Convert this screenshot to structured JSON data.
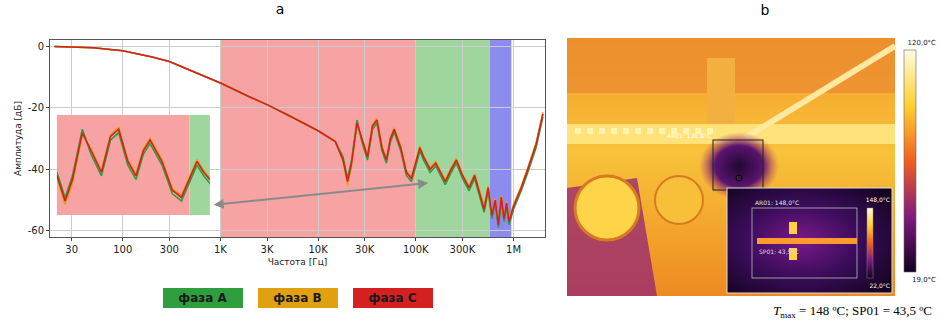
{
  "chart_data": {
    "type": "line",
    "panel_label": "a",
    "x_label": "Частота [Гц]",
    "y_label": "Амплитуда [дБ]",
    "log": "x",
    "grid": true,
    "legend": "bottom",
    "xlim": [
      18,
      2100000
    ],
    "ylim": [
      -62,
      2
    ],
    "xticks": [
      30,
      100,
      300,
      {
        "value": 1000,
        "label": "1K"
      },
      {
        "value": 3000,
        "label": "3K"
      },
      {
        "value": 10000,
        "label": "10K"
      },
      {
        "value": 30000,
        "label": "30K"
      },
      {
        "value": 100000,
        "label": "100K"
      },
      {
        "value": 300000,
        "label": "300K"
      },
      {
        "value": 1000000,
        "label": "1M"
      }
    ],
    "yticks": [
      0,
      -20,
      -40,
      -60
    ],
    "regions": [
      {
        "x0": 1000,
        "x1": 100000,
        "color": "#f7a3a3"
      },
      {
        "x0": 100000,
        "x1": 570000,
        "color": "#9ed69e"
      },
      {
        "x0": 570000,
        "x1": 950000,
        "color": "#8c8cf0"
      }
    ],
    "inset": {
      "xlim": [
        18000,
        130000
      ],
      "ylim": [
        -48,
        -20
      ]
    },
    "x": [
      20,
      30,
      50,
      100,
      200,
      300,
      500,
      1000,
      2000,
      3000,
      5000,
      10000,
      15000,
      18000,
      20000,
      22000,
      25000,
      28000,
      32000,
      36000,
      40000,
      45000,
      50000,
      55000,
      60000,
      70000,
      80000,
      90000,
      100000,
      110000,
      120000,
      140000,
      160000,
      180000,
      200000,
      230000,
      260000,
      300000,
      350000,
      400000,
      450000,
      500000,
      550000,
      600000,
      650000,
      700000,
      750000,
      800000,
      850000,
      900000,
      1000000,
      1200000,
      1400000,
      1700000,
      2000000
    ],
    "series": [
      {
        "name": "фаза A",
        "color": "#2e9e3e",
        "values": [
          -0.1,
          -0.2,
          -0.5,
          -1.5,
          -3.5,
          -5,
          -8,
          -12,
          -16.5,
          -19,
          -22.5,
          -27.5,
          -31,
          -36,
          -43,
          -37,
          -24,
          -31,
          -37,
          -27,
          -25,
          -34,
          -38,
          -31,
          -28,
          -34,
          -42,
          -44,
          -39,
          -34,
          -37,
          -41,
          -39,
          -42,
          -45,
          -41,
          -38,
          -43,
          -47,
          -43,
          -49,
          -54,
          -47,
          -56,
          -51,
          -59,
          -50,
          -57,
          -52,
          -58,
          -53,
          -47,
          -41,
          -33,
          -23
        ]
      },
      {
        "name": "фаза B",
        "color": "#e0a010",
        "values": [
          -0.1,
          -0.2,
          -0.5,
          -1.5,
          -3.5,
          -5,
          -8,
          -12,
          -16.5,
          -19,
          -22.5,
          -27.5,
          -31,
          -37.5,
          -45,
          -39,
          -25.5,
          -29.5,
          -35.5,
          -25.5,
          -23.5,
          -32.5,
          -36.5,
          -29.5,
          -26.5,
          -32.5,
          -40.5,
          -42.5,
          -37.5,
          -32.5,
          -35.5,
          -39.5,
          -37.5,
          -40.5,
          -43.5,
          -39.5,
          -36.5,
          -41.5,
          -45.5,
          -41.5,
          -47.5,
          -52,
          -45.5,
          -54.5,
          -49.5,
          -57,
          -48.5,
          -55.5,
          -50.5,
          -56.5,
          -51.5,
          -45.5,
          -39.5,
          -31.5,
          -21.5
        ]
      },
      {
        "name": "фаза C",
        "color": "#d42020",
        "values": [
          -0.1,
          -0.2,
          -0.5,
          -1.5,
          -3.5,
          -5,
          -8,
          -12,
          -16.5,
          -19,
          -22.5,
          -27.5,
          -31,
          -37,
          -44,
          -38,
          -25,
          -30,
          -36,
          -26,
          -24,
          -33,
          -37,
          -30,
          -27,
          -33,
          -41,
          -43,
          -38,
          -33,
          -36,
          -40,
          -38,
          -41,
          -44,
          -40,
          -37,
          -42,
          -46,
          -42,
          -48,
          -53,
          -46,
          -55,
          -50,
          -58,
          -49,
          -56,
          -51,
          -57,
          -52,
          -46,
          -40,
          -32,
          -22
        ]
      }
    ]
  },
  "image_panel": {
    "panel_label": "b",
    "area_label": "AR01: 136,8°C",
    "colorbar": {
      "top_label": "120,0°C",
      "bottom_label": "19,0°C"
    },
    "inset": {
      "area_label": "AR01: 148,0°C",
      "spot_label": "SP01: 43,5°C",
      "colorbar": {
        "top_label": "148,0°C",
        "bottom_label": "22,0°C"
      }
    },
    "caption": {
      "symbol": "T",
      "subscript": "max",
      "text": " = 148 ºC; SP01 = 43,5 ºC"
    }
  }
}
